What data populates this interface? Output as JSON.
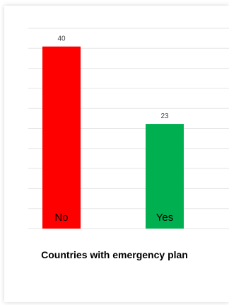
{
  "caption": "Countries with emergency plan",
  "chart_data": {
    "type": "bar",
    "categories": [
      "No",
      "Yes"
    ],
    "values": [
      40,
      23
    ],
    "colors": [
      "#ff0000",
      "#00b050"
    ],
    "ylim": [
      0,
      44
    ],
    "gridlines": true,
    "title": "",
    "xlabel": "",
    "ylabel": ""
  }
}
